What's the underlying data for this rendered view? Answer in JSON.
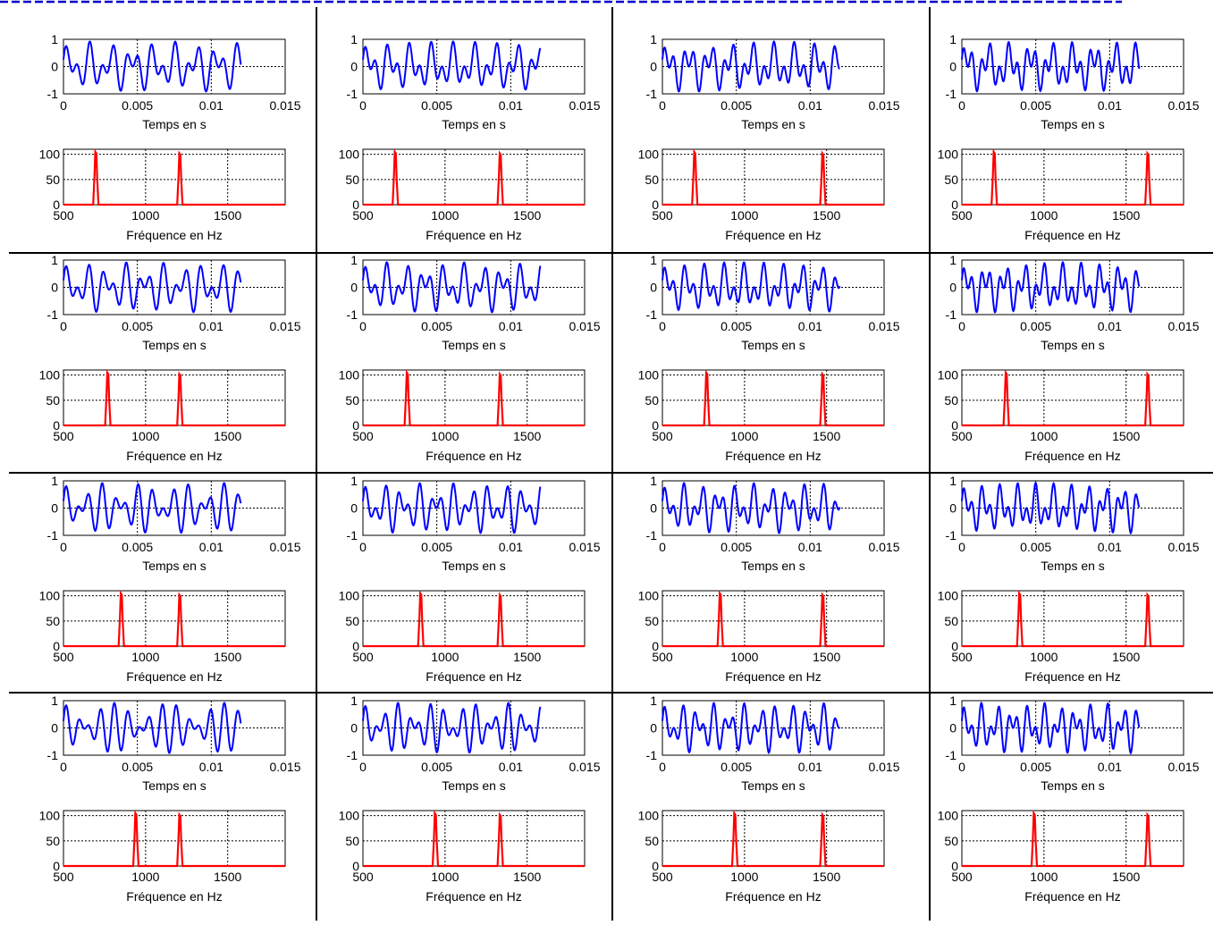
{
  "colors": {
    "background": "#ffffff",
    "time_trace": "#0000ff",
    "spectrum_trace": "#ff0000",
    "axes": "#000000",
    "grid": "#000000",
    "top_dashes": "#0000cc"
  },
  "grid_layout": {
    "rows": 4,
    "cols": 4,
    "tone_family": "DTMF"
  },
  "labels": {
    "time_xlabel": "Temps en s",
    "freq_xlabel": "Fréquence en Hz"
  },
  "low_tones_hz": [
    697,
    770,
    852,
    941
  ],
  "high_tones_hz": [
    1209,
    1336,
    1477,
    1633
  ],
  "chart_data": [
    {
      "type": "line",
      "role": "time-signal-template",
      "xlabel": "Temps en s",
      "ylabel": "",
      "xlim": [
        0,
        0.015
      ],
      "ylim": [
        -1,
        1
      ],
      "x_ticks": [
        "0",
        "0.005",
        "0.01",
        "0.015"
      ],
      "y_ticks": [
        "-1",
        "0",
        "1"
      ],
      "signal_duration_s": 0.012,
      "grid": true
    },
    {
      "type": "line",
      "role": "spectrum-template",
      "xlabel": "Fréquence en Hz",
      "ylabel": "",
      "xlim": [
        500,
        1850
      ],
      "ylim": [
        0,
        110
      ],
      "x_ticks": [
        "500",
        "1000",
        "1500"
      ],
      "y_ticks": [
        "0",
        "50",
        "100"
      ],
      "peak_values": [
        105,
        102
      ],
      "grid": true
    }
  ]
}
